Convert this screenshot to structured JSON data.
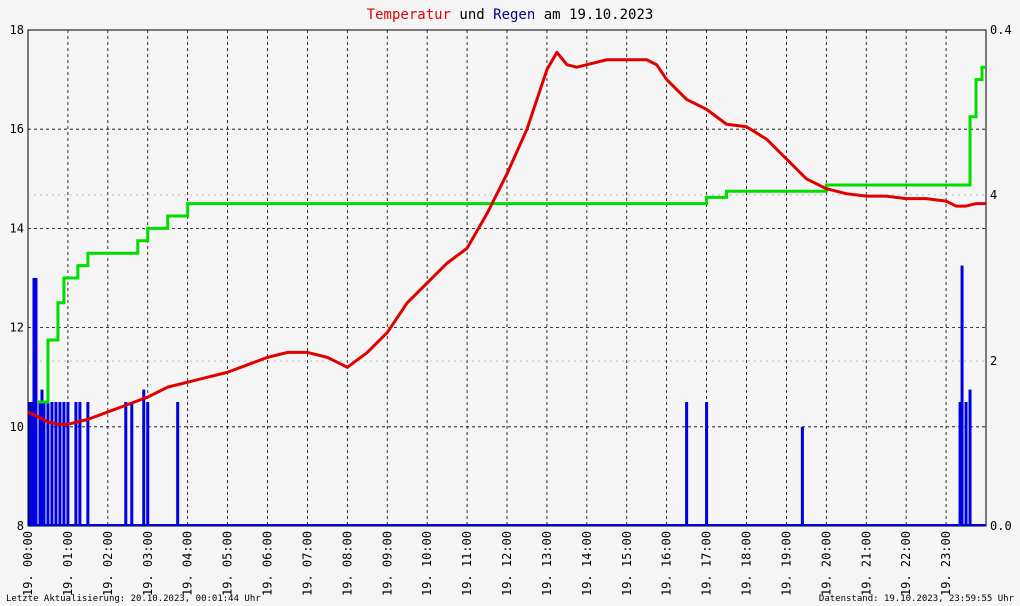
{
  "title": {
    "part1": "Temperatur",
    "part2": " und ",
    "part3": "Regen",
    "part4": " am 19.10.2023",
    "color1": "#e00000",
    "color3": "#000080"
  },
  "footer": {
    "left": "Letzte Aktualisierung: 20.10.2023, 00:01:44 Uhr",
    "right": "Datenstand: 19.10.2023, 23:59:55 Uhr"
  },
  "chart_data": {
    "type": "line",
    "title": "Temperatur und Regen am 19.10.2023",
    "x_tick_labels": [
      "19. 00:00",
      "19. 01:00",
      "19. 02:00",
      "19. 03:00",
      "19. 04:00",
      "19. 05:00",
      "19. 06:00",
      "19. 07:00",
      "19. 08:00",
      "19. 09:00",
      "19. 10:00",
      "19. 11:00",
      "19. 12:00",
      "19. 13:00",
      "19. 14:00",
      "19. 15:00",
      "19. 16:00",
      "19. 17:00",
      "19. 18:00",
      "19. 19:00",
      "19. 20:00",
      "19. 21:00",
      "19. 22:00",
      "19. 23:00"
    ],
    "x_range_hours": [
      0,
      24
    ],
    "y_left": {
      "ylim": [
        8,
        18
      ],
      "ticks": [
        "8",
        "10",
        "12",
        "14",
        "16",
        "18"
      ]
    },
    "y_right": {
      "ylim": [
        0,
        0.4
      ],
      "ticks": [
        "0.0",
        "2",
        "4",
        "0.4"
      ],
      "tick_values": [
        0,
        0.133,
        0.267,
        0.4
      ],
      "color": "#00cc00"
    },
    "grid": true,
    "series": [
      {
        "color": "#e00000",
        "axis": "left",
        "kind": "line",
        "x": [
          0,
          0.25,
          0.5,
          0.75,
          1.0,
          1.25,
          1.5,
          2.0,
          2.5,
          3.0,
          3.5,
          4.0,
          4.5,
          5.0,
          5.5,
          6.0,
          6.5,
          7.0,
          7.5,
          7.75,
          8.0,
          8.5,
          9.0,
          9.5,
          10.0,
          10.5,
          11.0,
          11.5,
          12.0,
          12.5,
          12.75,
          13.0,
          13.25,
          13.5,
          13.75,
          14.0,
          14.5,
          15.0,
          15.5,
          15.75,
          16.0,
          16.5,
          17.0,
          17.5,
          18.0,
          18.5,
          19.0,
          19.5,
          20.0,
          20.5,
          21.0,
          21.5,
          22.0,
          22.5,
          23.0,
          23.25,
          23.5,
          23.75,
          24.0
        ],
        "y": [
          10.3,
          10.2,
          10.1,
          10.05,
          10.05,
          10.1,
          10.15,
          10.3,
          10.45,
          10.6,
          10.8,
          10.9,
          11.0,
          11.1,
          11.25,
          11.4,
          11.5,
          11.5,
          11.4,
          11.3,
          11.2,
          11.5,
          11.9,
          12.5,
          12.9,
          13.3,
          13.6,
          14.3,
          15.1,
          16.0,
          16.6,
          17.2,
          17.55,
          17.3,
          17.25,
          17.3,
          17.4,
          17.4,
          17.4,
          17.3,
          17.0,
          16.6,
          16.4,
          16.1,
          16.05,
          15.8,
          15.4,
          15.0,
          14.8,
          14.7,
          14.65,
          14.65,
          14.6,
          14.6,
          14.55,
          14.45,
          14.45,
          14.5,
          14.5
        ]
      },
      {
        "color": "#00dd00",
        "axis": "right",
        "kind": "step",
        "x": [
          0.25,
          0.5,
          0.75,
          0.9,
          1.0,
          1.25,
          1.5,
          2.5,
          2.75,
          3.0,
          3.25,
          3.5,
          3.75,
          4.0,
          16.5,
          16.75,
          17.0,
          17.25,
          17.5,
          19.5,
          19.75,
          20.0,
          20.25,
          23.5,
          23.6,
          23.75,
          23.9,
          24.0
        ],
        "y": [
          0.1,
          0.15,
          0.18,
          0.2,
          0.2,
          0.21,
          0.22,
          0.22,
          0.23,
          0.24,
          0.24,
          0.25,
          0.25,
          0.26,
          0.26,
          0.26,
          0.265,
          0.265,
          0.27,
          0.27,
          0.27,
          0.275,
          0.275,
          0.275,
          0.33,
          0.36,
          0.37,
          0.37
        ]
      },
      {
        "color": "#0000e0",
        "axis": "right",
        "kind": "bars",
        "x": [
          0.05,
          0.1,
          0.15,
          0.2,
          0.3,
          0.35,
          0.4,
          0.5,
          0.6,
          0.7,
          0.8,
          0.9,
          1.0,
          1.2,
          1.3,
          1.5,
          2.45,
          2.6,
          2.9,
          3.0,
          3.75,
          16.5,
          17.0,
          19.4,
          23.35,
          23.4,
          23.5,
          23.6
        ],
        "y": [
          0.1,
          0.1,
          0.2,
          0.2,
          0.1,
          0.11,
          0.1,
          0.1,
          0.1,
          0.1,
          0.1,
          0.1,
          0.1,
          0.1,
          0.1,
          0.1,
          0.1,
          0.1,
          0.11,
          0.1,
          0.1,
          0.1,
          0.1,
          0.08,
          0.1,
          0.21,
          0.1,
          0.11
        ]
      }
    ]
  }
}
